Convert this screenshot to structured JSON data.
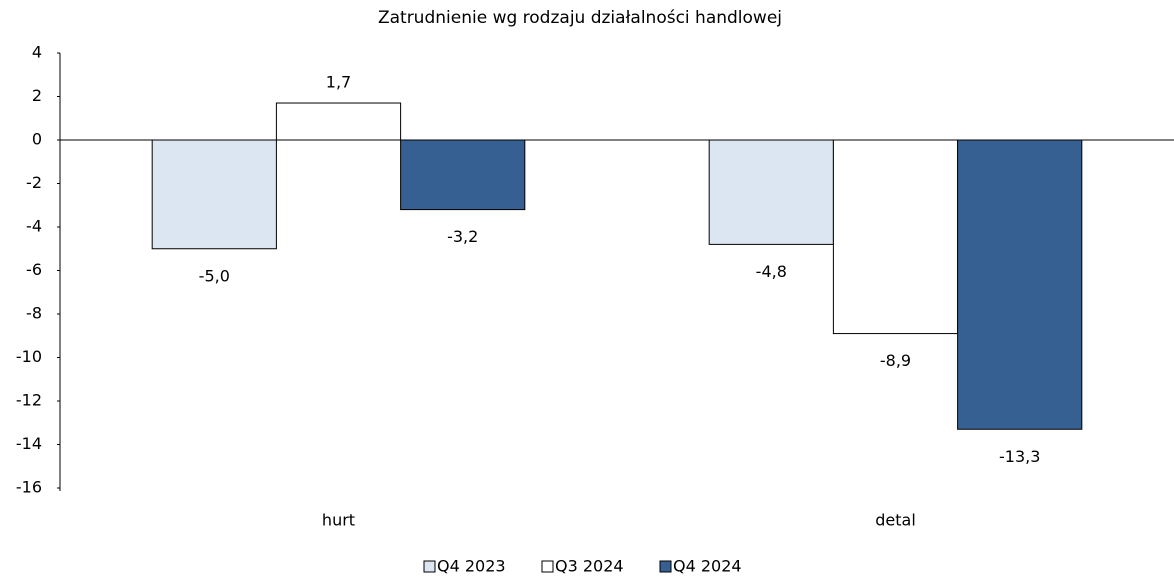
{
  "chart_data": {
    "type": "bar",
    "title": "Zatrudnienie wg rodzaju działalności handlowej",
    "categories": [
      "hurt",
      "detal"
    ],
    "series": [
      {
        "name": "Q4 2023",
        "color": "#dce6f2",
        "values": [
          -5.0,
          -4.8
        ],
        "value_labels": [
          "-5,0",
          "-4,8"
        ]
      },
      {
        "name": "Q3 2024",
        "color": "#ffffff",
        "values": [
          1.7,
          -8.9
        ],
        "value_labels": [
          "1,7",
          "-8,9"
        ]
      },
      {
        "name": "Q4 2024",
        "color": "#376092",
        "values": [
          -3.2,
          -13.3
        ],
        "value_labels": [
          "-3,2",
          "-13,3"
        ]
      }
    ],
    "ylim": [
      -16,
      4
    ],
    "yticks": [
      4,
      2,
      0,
      -2,
      -4,
      -6,
      -8,
      -10,
      -12,
      -14,
      -16
    ],
    "grid": false,
    "legend": "bottom"
  }
}
